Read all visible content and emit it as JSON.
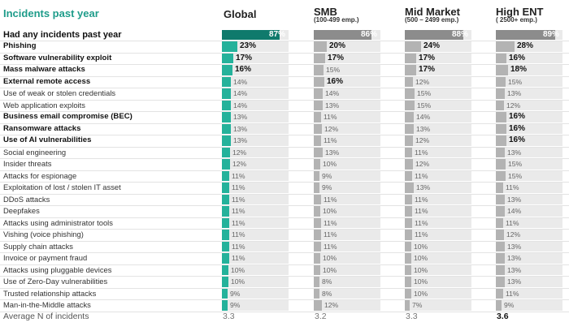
{
  "title": "Incidents past year",
  "columns": [
    {
      "name": "Global",
      "sub": ""
    },
    {
      "name": "SMB",
      "sub": "(100-499 emp.)"
    },
    {
      "name": "Mid Market",
      "sub": "(500 – 2499 emp.)"
    },
    {
      "name": "High ENT",
      "sub": "( 2500+ emp.)"
    }
  ],
  "colors": {
    "global_header": "#0f7a6c",
    "global_bar": "#24b29b",
    "other_header": "#8c8c8c",
    "other_bar": "#b3b3b3",
    "track": "#eaeaea",
    "title": "#1e9c8a"
  },
  "chart_data": {
    "type": "table",
    "title": "Incidents past year",
    "unit": "%",
    "series_names": [
      "Global",
      "SMB",
      "Mid Market",
      "High ENT"
    ],
    "rows": [
      {
        "label": "Had any incidents past year",
        "values": [
          "87%",
          "86%",
          "88%",
          "89%"
        ],
        "header": true
      },
      {
        "label": "Phishing",
        "values": [
          "23%",
          "20%",
          "24%",
          "28%"
        ],
        "bold_label": true,
        "bold_values": [
          true,
          true,
          true,
          true
        ]
      },
      {
        "label": "Software vulnerability exploit",
        "values": [
          "17%",
          "17%",
          "17%",
          "16%"
        ],
        "bold_label": true,
        "bold_values": [
          true,
          true,
          true,
          true
        ]
      },
      {
        "label": "Mass malware attacks",
        "values": [
          "16%",
          "15%",
          "17%",
          "18%"
        ],
        "bold_label": true,
        "bold_values": [
          true,
          false,
          true,
          true
        ]
      },
      {
        "label": "External remote access",
        "values": [
          "14%",
          "16%",
          "12%",
          "15%"
        ],
        "bold_label": true,
        "bold_values": [
          false,
          true,
          false,
          false
        ]
      },
      {
        "label": "Use of weak or stolen credentials",
        "values": [
          "14%",
          "14%",
          "15%",
          "13%"
        ]
      },
      {
        "label": "Web application exploits",
        "values": [
          "14%",
          "13%",
          "15%",
          "12%"
        ]
      },
      {
        "label": "Business email compromise (BEC)",
        "values": [
          "13%",
          "11%",
          "14%",
          "16%"
        ],
        "bold_label": true,
        "bold_values": [
          false,
          false,
          false,
          true
        ]
      },
      {
        "label": "Ransomware attacks",
        "values": [
          "13%",
          "12%",
          "13%",
          "16%"
        ],
        "bold_label": true,
        "bold_values": [
          false,
          false,
          false,
          true
        ]
      },
      {
        "label": "Use of AI vulnerabilities",
        "values": [
          "13%",
          "11%",
          "12%",
          "16%"
        ],
        "bold_label": true,
        "bold_values": [
          false,
          false,
          false,
          true
        ]
      },
      {
        "label": "Social engineering",
        "values": [
          "12%",
          "13%",
          "11%",
          "13%"
        ]
      },
      {
        "label": "Insider threats",
        "values": [
          "12%",
          "10%",
          "12%",
          "15%"
        ]
      },
      {
        "label": "Attacks for espionage",
        "values": [
          "11%",
          "9%",
          "11%",
          "15%"
        ]
      },
      {
        "label": "Exploitation of lost / stolen IT asset",
        "values": [
          "11%",
          "9%",
          "13%",
          "11%"
        ]
      },
      {
        "label": "DDoS attacks",
        "values": [
          "11%",
          "11%",
          "11%",
          "13%"
        ]
      },
      {
        "label": "Deepfakes",
        "values": [
          "11%",
          "10%",
          "11%",
          "14%"
        ]
      },
      {
        "label": "Attacks using administrator tools",
        "values": [
          "11%",
          "11%",
          "11%",
          "11%"
        ]
      },
      {
        "label": "Vishing (voice phishing)",
        "values": [
          "11%",
          "11%",
          "11%",
          "12%"
        ]
      },
      {
        "label": "Supply chain attacks",
        "values": [
          "11%",
          "11%",
          "10%",
          "13%"
        ]
      },
      {
        "label": "Invoice or payment fraud",
        "values": [
          "11%",
          "10%",
          "10%",
          "13%"
        ]
      },
      {
        "label": "Attacks using pluggable devices",
        "values": [
          "10%",
          "10%",
          "10%",
          "13%"
        ]
      },
      {
        "label": "Use of Zero-Day vulnerabilities",
        "values": [
          "10%",
          "8%",
          "10%",
          "13%"
        ]
      },
      {
        "label": "Trusted relationship attacks",
        "values": [
          "9%",
          "8%",
          "10%",
          "11%"
        ]
      },
      {
        "label": "Man-in-the-Middle attacks",
        "values": [
          "9%",
          "12%",
          "7%",
          "9%"
        ]
      }
    ],
    "average": {
      "label": "Average N of incidents",
      "values": [
        "3.3",
        "3.2",
        "3.3",
        "3.6"
      ],
      "bold_values": [
        false,
        false,
        false,
        true
      ]
    }
  }
}
